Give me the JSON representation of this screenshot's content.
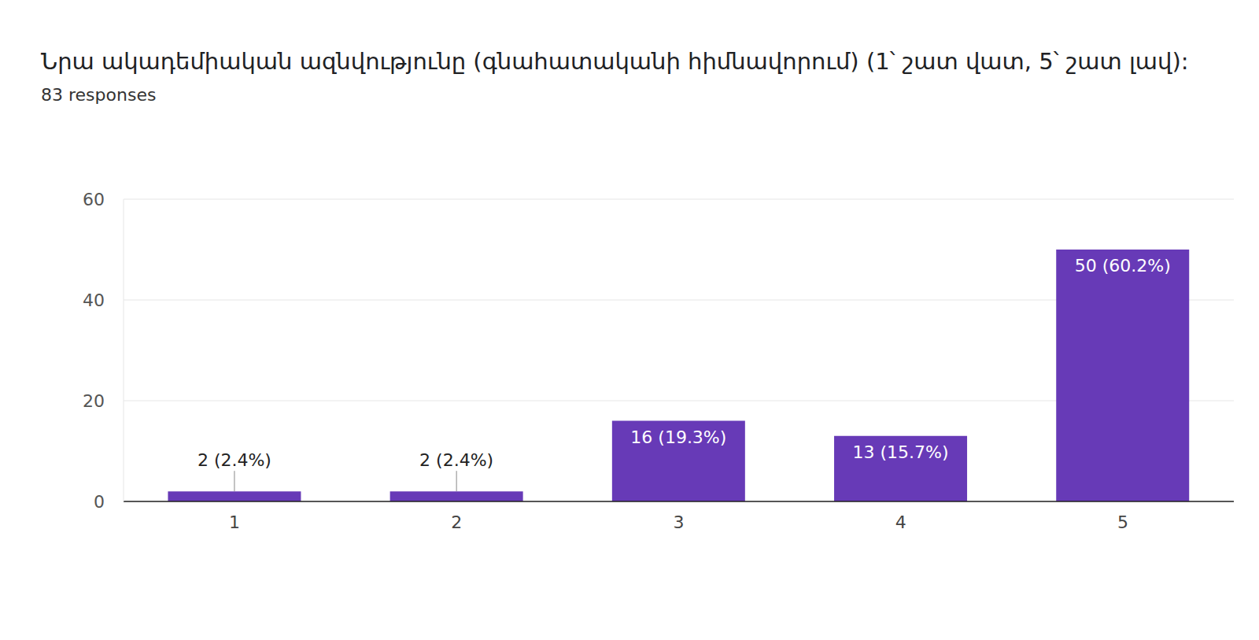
{
  "chart_data": {
    "type": "bar",
    "title": "Նրա ակադեմիական ազնվությունը (գնահատականի հիմնավորում)  (1՝ շատ վատ, 5՝ շատ լավ):",
    "subtitle": "83 responses",
    "categories": [
      "1",
      "2",
      "3",
      "4",
      "5"
    ],
    "values": [
      2,
      2,
      16,
      13,
      50
    ],
    "value_labels": [
      "2 (2.4%)",
      "2 (2.4%)",
      "16 (19.3%)",
      "13 (15.7%)",
      "50 (60.2%)"
    ],
    "color": "#673ab7",
    "ylim": [
      0,
      60
    ],
    "yticks": [
      0,
      20,
      40,
      60
    ],
    "grid": true,
    "data_labels": true
  }
}
